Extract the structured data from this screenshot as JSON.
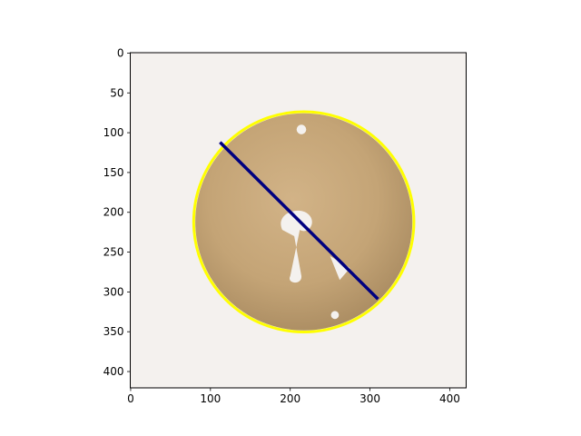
{
  "chart_data": {
    "type": "image",
    "x_ticks": [
      "0",
      "100",
      "200",
      "300",
      "400"
    ],
    "x_tick_values": [
      0,
      100,
      200,
      300,
      400
    ],
    "y_ticks": [
      "0",
      "50",
      "100",
      "150",
      "200",
      "250",
      "300",
      "350",
      "400"
    ],
    "y_tick_values": [
      0,
      50,
      100,
      150,
      200,
      250,
      300,
      350,
      400
    ],
    "xlim": [
      -0.5,
      420.5
    ],
    "ylim": [
      420.5,
      -0.5
    ],
    "y_inverted": true,
    "grid": false,
    "image_background": "#f4f1ee",
    "object_color": "#c8a878",
    "circle": {
      "cx": 217,
      "cy": 212,
      "rx": 138,
      "ry": 138,
      "color": "#ffff00"
    },
    "line": {
      "x1": 112,
      "y1": 112,
      "x2": 310,
      "y2": 309,
      "color": "#000080"
    },
    "holes": [
      {
        "cx": 214,
        "cy": 96,
        "r": 6
      },
      {
        "cx": 256,
        "cy": 329,
        "r": 5
      }
    ]
  }
}
